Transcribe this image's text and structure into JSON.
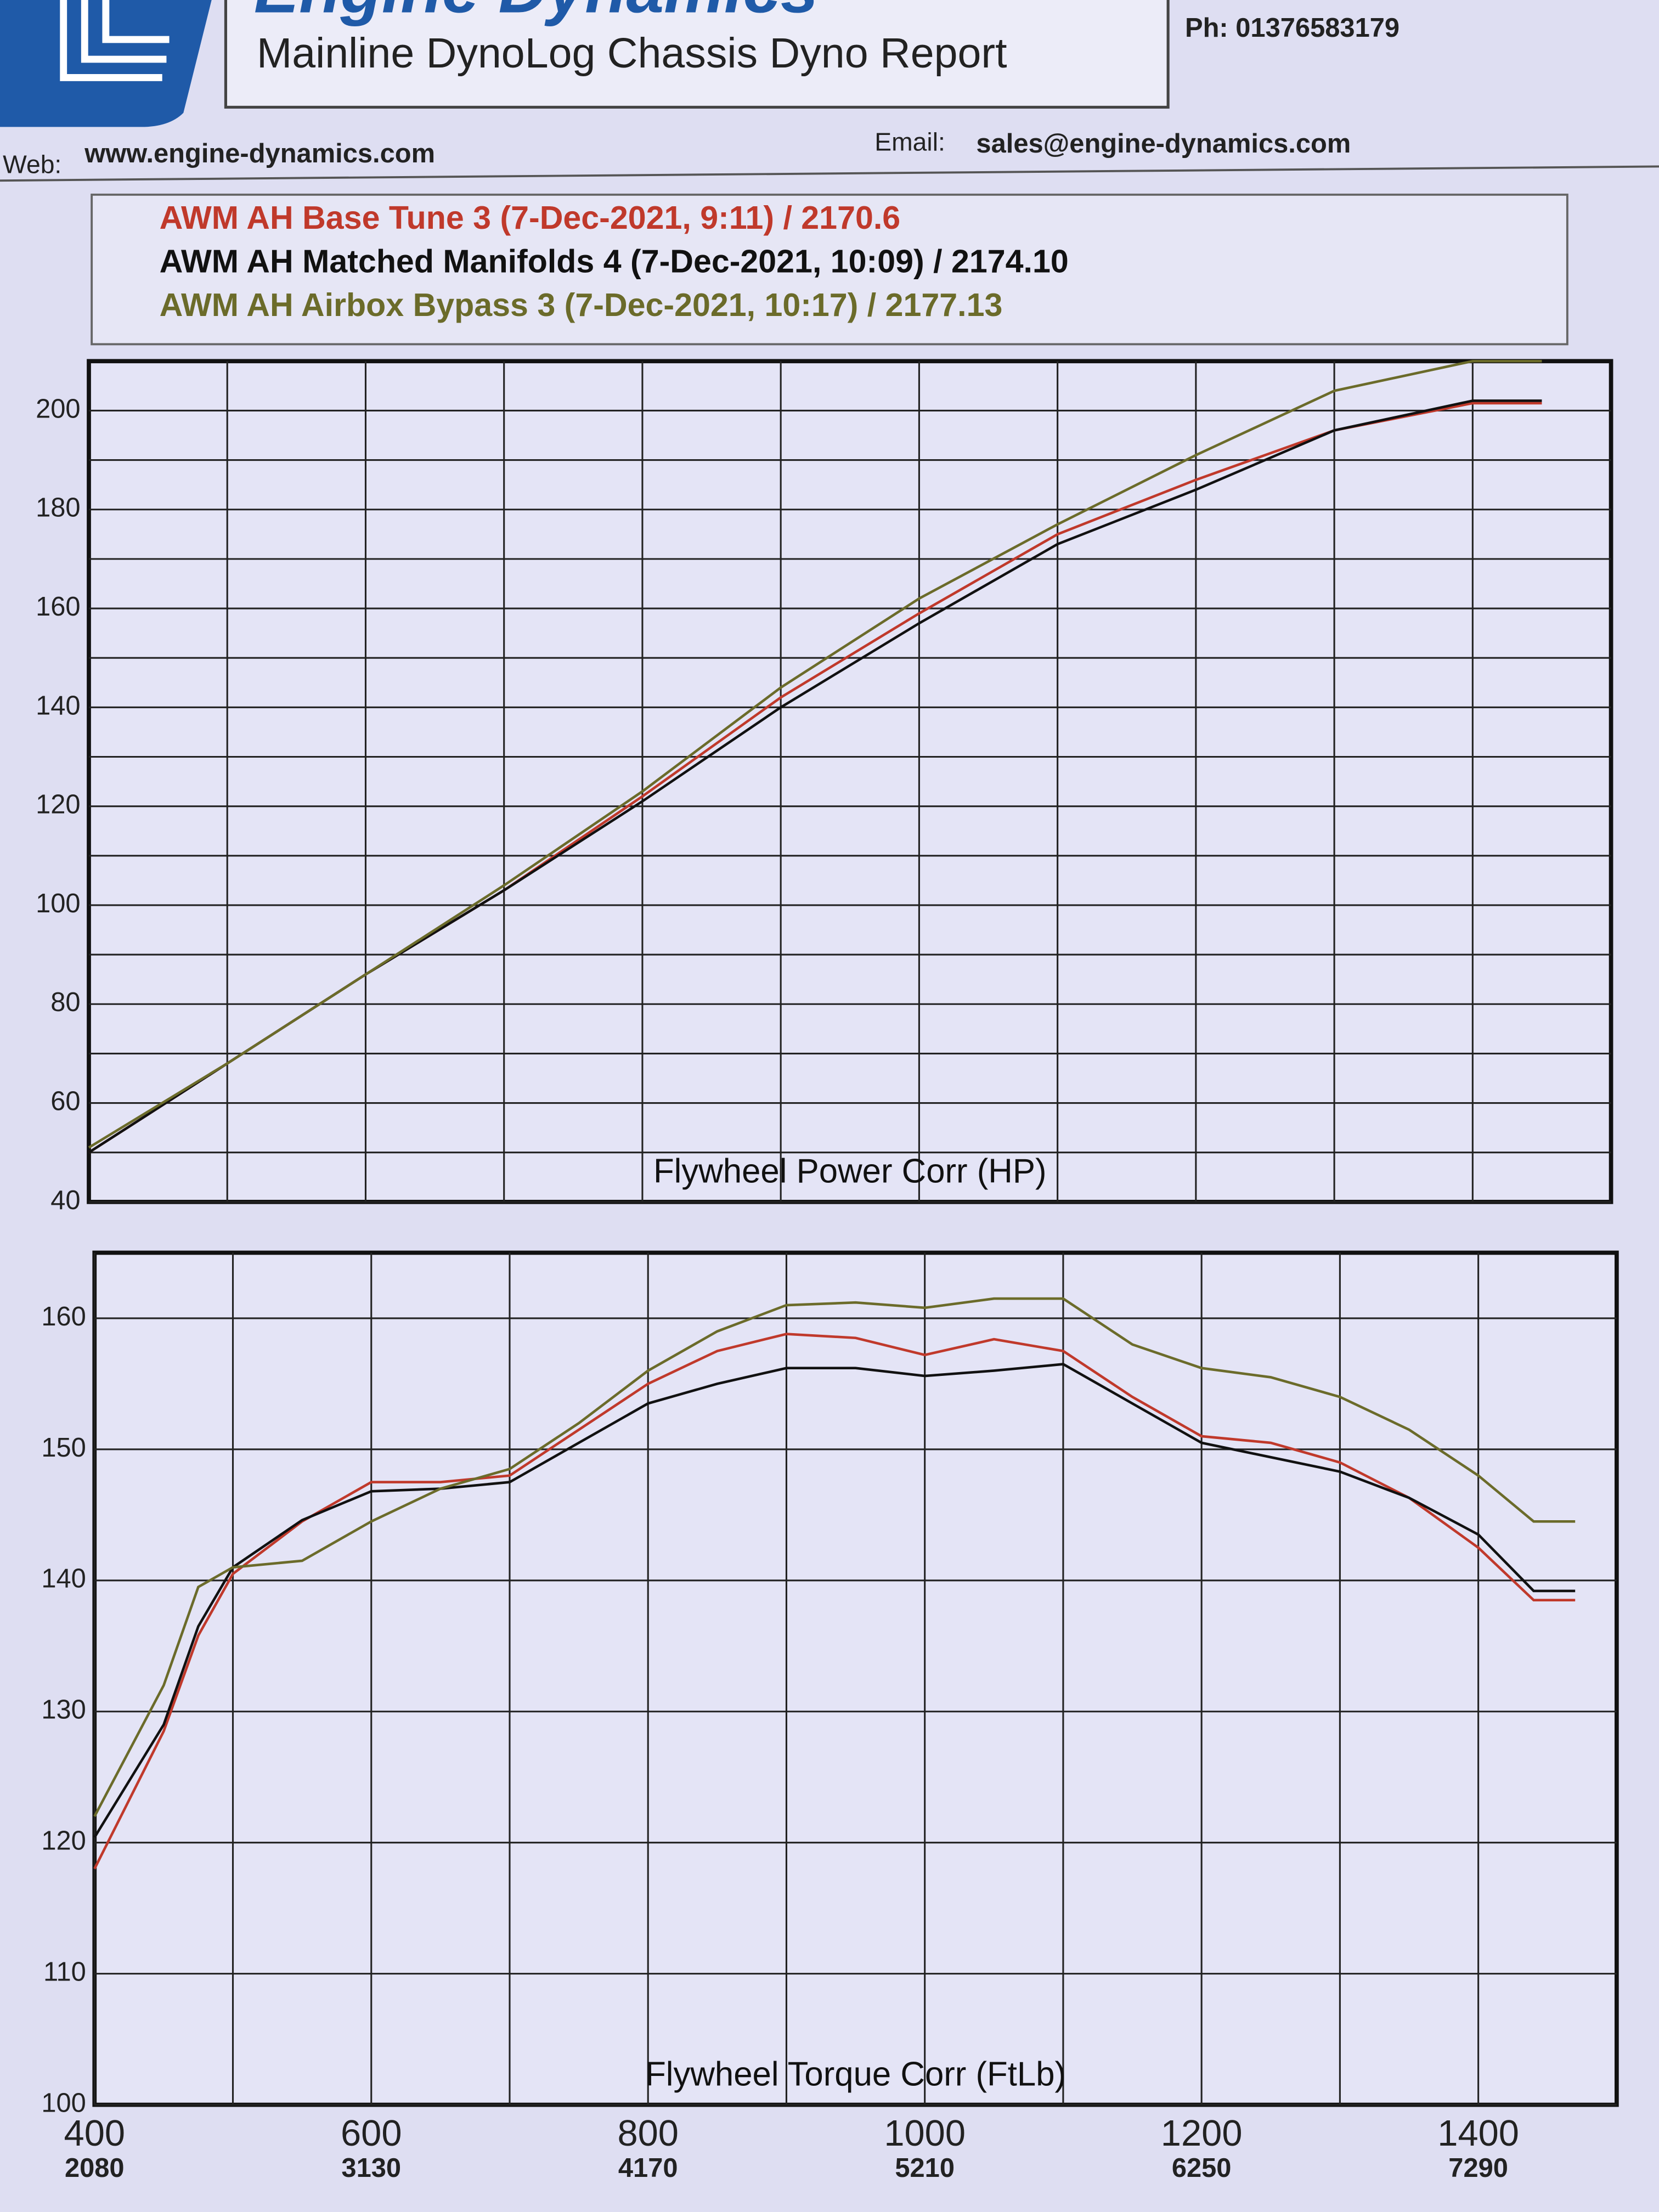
{
  "header": {
    "brand": "Engine Dynamics",
    "report_title": "Mainline DynoLog Chassis Dyno Report",
    "phone": "Ph: 01376583179",
    "web_label": "Web:",
    "web": "www.engine-dynamics.com",
    "email_label": "Email:",
    "email": "sales@engine-dynamics.com"
  },
  "chart_data": [
    {
      "type": "line",
      "title": "Flywheel Power Corr (HP)",
      "x": [
        400,
        500,
        600,
        700,
        800,
        900,
        1000,
        1100,
        1200,
        1300,
        1400,
        1450
      ],
      "series": [
        {
          "name": "AWM AH Base Tune 3 (7-Dec-2021, 9:11) / 2170.6",
          "color": "#c0392b",
          "values": [
            50,
            68,
            86,
            103,
            122,
            142,
            159,
            175,
            186,
            196,
            201.5,
            201.5
          ]
        },
        {
          "name": "AWM AH Matched Manifolds 4 (7-Dec-2021, 10:09) / 2174.10",
          "color": "#111111",
          "values": [
            50,
            68,
            86,
            103,
            121,
            140,
            157,
            173,
            184,
            196,
            202,
            202
          ]
        },
        {
          "name": "AWM AH Airbox Bypass 3 (7-Dec-2021, 10:17) / 2177.13",
          "color": "#6b6b2a",
          "values": [
            51,
            68,
            86,
            104,
            123,
            144,
            162,
            177,
            191,
            204,
            210,
            210
          ]
        }
      ],
      "xlim": [
        400,
        1500
      ],
      "xgrid": [
        500,
        600,
        700,
        800,
        900,
        1000,
        1100,
        1200,
        1300,
        1400
      ],
      "ylim": [
        40,
        210
      ],
      "yticks": [
        40,
        60,
        80,
        100,
        120,
        140,
        160,
        180,
        200
      ],
      "yminorgrid": [
        50,
        70,
        90,
        110,
        130,
        150,
        170,
        190
      ],
      "grid": true
    },
    {
      "type": "line",
      "title": "Flywheel Torque Corr (FtLb)",
      "x": [
        400,
        450,
        475,
        500,
        550,
        600,
        650,
        700,
        750,
        800,
        850,
        900,
        950,
        1000,
        1050,
        1100,
        1150,
        1200,
        1250,
        1300,
        1350,
        1400,
        1440,
        1470
      ],
      "series": [
        {
          "color": "#c0392b",
          "values": [
            118,
            128.5,
            135.8,
            140.5,
            144.5,
            147.5,
            147.5,
            148,
            151.5,
            155,
            157.5,
            158.8,
            158.5,
            157.2,
            158.4,
            157.5,
            154,
            151,
            150.5,
            149,
            146.3,
            142.5,
            138.5,
            138.5
          ]
        },
        {
          "color": "#111111",
          "values": [
            120.4,
            129,
            136.5,
            141,
            144.6,
            146.8,
            147,
            147.5,
            150.5,
            153.5,
            155,
            156.2,
            156.2,
            155.6,
            156,
            156.5,
            153.5,
            150.5,
            149.4,
            148.3,
            146.3,
            143.5,
            139.2,
            139.2
          ]
        },
        {
          "color": "#6b6b2a",
          "values": [
            122,
            132,
            139.5,
            141,
            141.5,
            144.5,
            147,
            148.5,
            152,
            156,
            159,
            161,
            161.2,
            160.8,
            161.5,
            161.5,
            158,
            156.2,
            155.5,
            154,
            151.5,
            148,
            144.5,
            144.5
          ]
        }
      ],
      "xlim": [
        400,
        1500
      ],
      "xticks": [
        400,
        600,
        800,
        1000,
        1200,
        1400
      ],
      "x2ticks": [
        2080,
        3130,
        4170,
        5210,
        6250,
        7290
      ],
      "xminorgrid": [
        500,
        700,
        900,
        1100,
        1300
      ],
      "ylim": [
        100,
        165
      ],
      "yticks": [
        100,
        110,
        120,
        130,
        140,
        150,
        160
      ],
      "grid": true
    }
  ]
}
